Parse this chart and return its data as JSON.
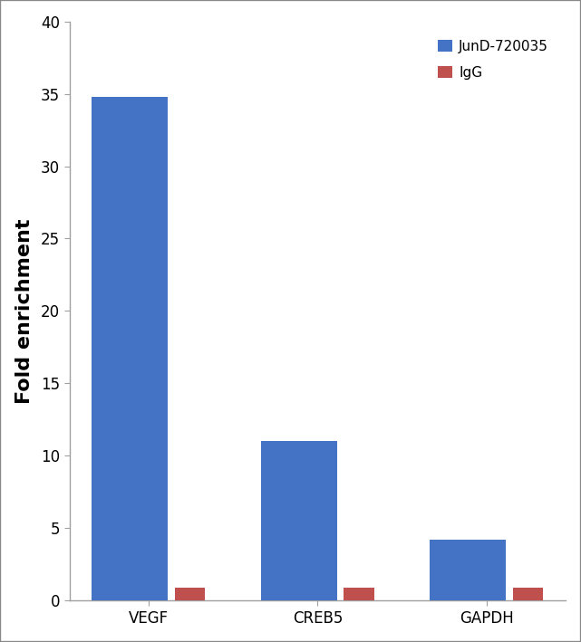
{
  "categories": [
    "VEGF",
    "CREB5",
    "GAPDH"
  ],
  "jund_values": [
    34.8,
    11.0,
    4.2
  ],
  "igg_values": [
    0.9,
    0.9,
    0.9
  ],
  "jund_color": "#4472C4",
  "igg_color": "#C0504D",
  "ylabel": "Fold enrichment",
  "ylim": [
    0,
    40
  ],
  "yticks": [
    0,
    5,
    10,
    15,
    20,
    25,
    30,
    35,
    40
  ],
  "legend_labels": [
    "JunD-720035",
    "IgG"
  ],
  "jund_bar_width": 0.45,
  "igg_bar_width": 0.18,
  "figure_bg": "#ffffff",
  "axes_bg": "#ffffff",
  "border_color": "#a0a0a0",
  "tick_label_fontsize": 12,
  "ylabel_fontsize": 16,
  "legend_fontsize": 11
}
